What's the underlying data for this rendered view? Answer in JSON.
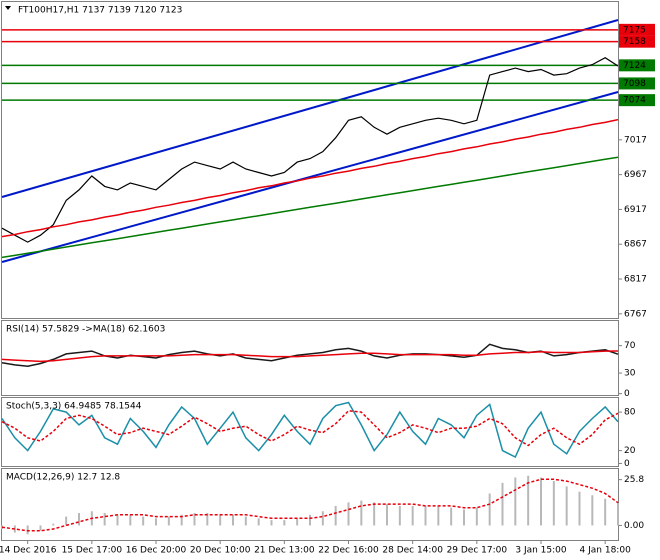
{
  "chart_data": [
    {
      "type": "line",
      "title": "FT100H17,H1  7137 7139 7120 7123",
      "categories": [
        null,
        null,
        "14 Dec 2016",
        null,
        null,
        null,
        null,
        "15 Dec 17:00",
        null,
        null,
        null,
        null,
        "16 Dec 20:00",
        null,
        null,
        null,
        null,
        "20 Dec 10:00",
        null,
        null,
        null,
        null,
        "21 Dec 13:00",
        null,
        null,
        null,
        null,
        "22 Dec 16:00",
        null,
        null,
        null,
        null,
        "28 Dec 14:00",
        null,
        null,
        null,
        null,
        "29 Dec 17:00",
        null,
        null,
        null,
        null,
        "3 Jan 15:00",
        null,
        null,
        null,
        null,
        "4 Jan 18:00",
        null
      ],
      "series": [
        {
          "color": "#000000",
          "values": [
            6890,
            6880,
            6870,
            6880,
            6895,
            6930,
            6945,
            6965,
            6950,
            6945,
            6955,
            6950,
            6945,
            6960,
            6975,
            6985,
            6980,
            6975,
            6985,
            6975,
            6970,
            6965,
            6970,
            6985,
            6990,
            7000,
            7020,
            7045,
            7050,
            7035,
            7025,
            7035,
            7040,
            7045,
            7048,
            7045,
            7040,
            7045,
            7110,
            7115,
            7120,
            7115,
            7118,
            7110,
            7112,
            7120,
            7125,
            7135,
            7123
          ]
        },
        {
          "color": "#e8000b",
          "values": [
            6878,
            6881,
            6885,
            6888,
            6892,
            6895,
            6899,
            6902,
            6906,
            6909,
            6913,
            6916,
            6920,
            6923,
            6927,
            6930,
            6934,
            6937,
            6941,
            6944,
            6948,
            6951,
            6955,
            6958,
            6962,
            6965,
            6969,
            6972,
            6976,
            6979,
            6983,
            6986,
            6990,
            6993,
            6997,
            7000,
            7004,
            7007,
            7011,
            7014,
            7018,
            7021,
            7025,
            7028,
            7032,
            7035,
            7039,
            7042,
            7046
          ]
        },
        {
          "color": "#007a00",
          "values": [
            6848,
            6851,
            6854,
            6857,
            6860,
            6863,
            6866,
            6869,
            6872,
            6875,
            6878,
            6881,
            6884,
            6887,
            6890,
            6893,
            6896,
            6899,
            6902,
            6905,
            6908,
            6911,
            6914,
            6917,
            6920,
            6923,
            6926,
            6929,
            6932,
            6935,
            6938,
            6941,
            6944,
            6947,
            6950,
            6953,
            6956,
            6959,
            6962,
            6965,
            6968,
            6971,
            6974,
            6977,
            6980,
            6983,
            6986,
            6989,
            6992
          ]
        }
      ],
      "levels": [
        {
          "value": 7175,
          "color": "#e8000b"
        },
        {
          "value": 7158,
          "color": "#e8000b"
        },
        {
          "value": 7124,
          "color": "#007a00"
        },
        {
          "value": 7098,
          "color": "#007a00"
        },
        {
          "value": 7074,
          "color": "#007a00"
        }
      ],
      "ylim": [
        6761,
        7215
      ],
      "yticks": [
        6767,
        6817,
        6867,
        6917,
        6967,
        7017
      ]
    },
    {
      "type": "line",
      "title": "RSI(14) 57.5829  ->MA(18) 62.1603",
      "series": [
        {
          "color": "#1a1a1a",
          "values": [
            45,
            42,
            40,
            44,
            50,
            58,
            60,
            62,
            55,
            52,
            56,
            54,
            52,
            57,
            60,
            62,
            58,
            55,
            58,
            52,
            50,
            48,
            52,
            56,
            58,
            60,
            64,
            66,
            62,
            55,
            52,
            56,
            58,
            58,
            57,
            55,
            53,
            56,
            72,
            66,
            64,
            60,
            62,
            55,
            57,
            60,
            62,
            64,
            57.58
          ]
        },
        {
          "color": "#e8000b",
          "values": [
            50,
            49,
            48,
            47,
            48,
            50,
            52,
            54,
            55,
            55,
            55,
            55,
            55,
            55,
            56,
            57,
            57,
            57,
            57,
            56,
            55,
            54,
            54,
            54,
            55,
            56,
            57,
            58,
            59,
            59,
            58,
            57,
            57,
            57,
            57,
            57,
            56,
            56,
            58,
            59,
            60,
            60,
            61,
            60,
            60,
            60,
            61,
            62,
            62.16
          ]
        }
      ],
      "ylim": [
        -2,
        106
      ],
      "yticks": [
        0,
        30,
        70
      ]
    },
    {
      "type": "line",
      "title": "Stoch(5,3,3) 64.9485 78.1544",
      "series": [
        {
          "color": "#1a8fa8",
          "values": [
            70,
            40,
            20,
            50,
            85,
            80,
            60,
            75,
            40,
            30,
            70,
            50,
            25,
            60,
            88,
            70,
            30,
            55,
            80,
            40,
            20,
            45,
            75,
            50,
            30,
            70,
            90,
            95,
            60,
            20,
            45,
            80,
            50,
            30,
            70,
            60,
            40,
            75,
            92,
            20,
            10,
            55,
            80,
            30,
            15,
            50,
            70,
            88,
            64.95
          ]
        },
        {
          "color": "#e8000b",
          "dash": true,
          "values": [
            65,
            55,
            40,
            35,
            50,
            70,
            75,
            70,
            58,
            45,
            48,
            55,
            50,
            45,
            58,
            72,
            62,
            50,
            55,
            58,
            45,
            35,
            45,
            58,
            52,
            48,
            62,
            82,
            80,
            60,
            40,
            48,
            60,
            55,
            48,
            55,
            55,
            58,
            70,
            62,
            40,
            28,
            45,
            55,
            40,
            30,
            45,
            68,
            78.15
          ]
        }
      ],
      "ylim": [
        -4,
        102
      ],
      "yticks": [
        0,
        20,
        80
      ]
    },
    {
      "type": "macd",
      "title": "MACD(12,26,9) 12.7 12.8",
      "series": [
        {
          "color": "#b8b8b8",
          "bars": true,
          "values": [
            -2,
            -4,
            -5,
            -3,
            1,
            5,
            7,
            8,
            7,
            6,
            6,
            5,
            4,
            5,
            6,
            7,
            7,
            6,
            6,
            5,
            4,
            3,
            3,
            4,
            6,
            8,
            11,
            13,
            14,
            13,
            12,
            11,
            11,
            11,
            11,
            10,
            9,
            10,
            18,
            24,
            27,
            28,
            27,
            25,
            22,
            19,
            17,
            15,
            12.7
          ]
        },
        {
          "color": "#e8000b",
          "dash": true,
          "values": [
            -1,
            -2,
            -3,
            -3,
            -2,
            0,
            2,
            4,
            5,
            6,
            6,
            6,
            5,
            5,
            5,
            6,
            6,
            6,
            6,
            6,
            5,
            4,
            4,
            4,
            4,
            5,
            7,
            9,
            11,
            12,
            12,
            12,
            12,
            11,
            11,
            11,
            10,
            10,
            12,
            16,
            20,
            24,
            26,
            26,
            25,
            23,
            21,
            18,
            12.8
          ]
        }
      ],
      "ylim": [
        -8.2,
        31.8
      ],
      "yticks": [
        {
          "value": 0,
          "label": "0.00"
        },
        25.8
      ]
    }
  ]
}
